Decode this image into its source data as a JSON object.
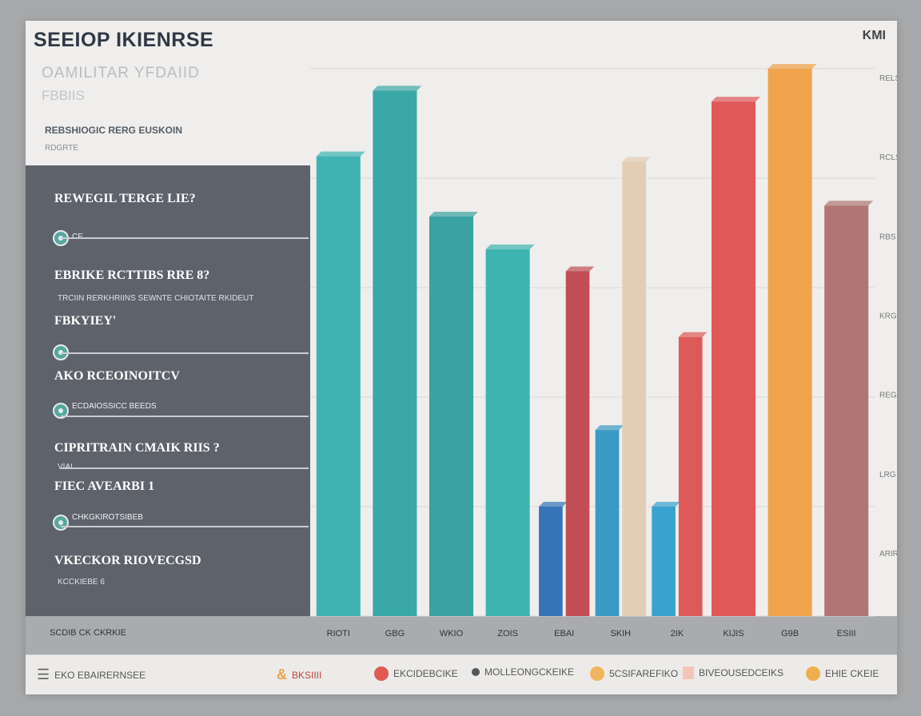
{
  "header": {
    "title": "SEEIOP IKIENRSE",
    "corner": "KMI",
    "subtitle1": "OAMILITAR YFDAIID",
    "subtitle2": "FBBIIS",
    "meta1": "REBSHIOGIC RERG EUSKOIN",
    "meta2": "RDGRTE"
  },
  "panel": {
    "rows": [
      {
        "label": "REWEGIL TERGE  LIE?",
        "sub": "",
        "slider": "CE"
      },
      {
        "label": "EBRIKE RCTTIBS  RRE 8?",
        "sub": "TRCIIN RERKHRIINS SEWNTE CHIOTAITE RKIDEUT",
        "slider": ""
      },
      {
        "label": "FBKYIEY'",
        "sub": "",
        "slider": ""
      },
      {
        "label": "AKO RCEOINOITCV",
        "sub": "",
        "slider": "ECDAIOSSICC BEEDS"
      },
      {
        "label": "CIPRITRAIN  CMAIK RIIS ?",
        "sub": "VIAI",
        "slider": ""
      },
      {
        "label": "FIEC AVEARBI 1",
        "sub": "",
        "slider": "CHKGKIROTSIBEB"
      },
      {
        "label": "VKECKOR RIOVECGSD",
        "sub": "KCCKIEBE 6",
        "slider": ""
      }
    ]
  },
  "axis_label": "SCDIB CK CKRKIE",
  "legend": [
    {
      "label": "BKSIIII",
      "color": "#e8a24a",
      "shape": "logo"
    },
    {
      "label": "EKCIDEBCIKE",
      "color": "#e05a52",
      "shape": "dot"
    },
    {
      "label": "MOLLEONGCKEIKE",
      "color": "#444444",
      "shape": "dot"
    },
    {
      "label": "5CSIFAREFIKO",
      "color": "#f2b45c",
      "shape": "dot"
    },
    {
      "label": "BIVEOUSEDCEIKS",
      "color": "#f3c5b8",
      "shape": "square"
    },
    {
      "label": "EHIE CKEIE",
      "color": "#eeb04e",
      "shape": "dot"
    },
    {
      "label": "EKO EBAIRERNSEE",
      "color": "#666666",
      "shape": "icon"
    }
  ],
  "colors": {
    "panel": "#5d626b",
    "teal": "#3fb3b3",
    "blue": "#3c8ccc",
    "red": "#e0585a",
    "sand": "#e9d3bd",
    "orange": "#f0a34c",
    "mauve": "#b07674"
  },
  "chart_data": {
    "type": "bar",
    "title": "",
    "xlabel": "",
    "ylabel": "",
    "categories": [
      "RIOTI",
      "GBG",
      "WKIO",
      "ZOIS",
      "EBAI",
      "SKIH",
      "2IK",
      "KIJIS",
      "G9B",
      "ESIII"
    ],
    "y_tick_labels": [
      "RELS",
      "RCLS",
      "RBS",
      "KRG",
      "REG",
      "LRG",
      "ARIRE"
    ],
    "bars": [
      {
        "category": "RIOTI",
        "value": 84,
        "color": "#3fb3b3"
      },
      {
        "category": "GBG",
        "value": 96,
        "color": "#3aa8a7"
      },
      {
        "category": "WKIO",
        "value": 73,
        "color": "#3ba2a3"
      },
      {
        "category": "ZOIS",
        "value": 67,
        "color": "#3db4b0"
      },
      {
        "category": "EBAI",
        "value": 20,
        "color": "#3674b8"
      },
      {
        "category": "EBAI",
        "value": 63,
        "color": "#c24e55"
      },
      {
        "category": "SKIH",
        "value": 34,
        "color": "#3a9ac3"
      },
      {
        "category": "SKIH",
        "value": 83,
        "color": "#e3cdb5"
      },
      {
        "category": "2IK",
        "value": 20,
        "color": "#3aa2d0"
      },
      {
        "category": "2IK",
        "value": 51,
        "color": "#de5a58"
      },
      {
        "category": "KIJIS",
        "value": 94,
        "color": "#e0585a"
      },
      {
        "category": "G9B",
        "value": 100,
        "color": "#f0a34c"
      },
      {
        "category": "ESIII",
        "value": 75,
        "color": "#b07674"
      }
    ],
    "ylim": [
      0,
      100
    ],
    "grid": true
  }
}
